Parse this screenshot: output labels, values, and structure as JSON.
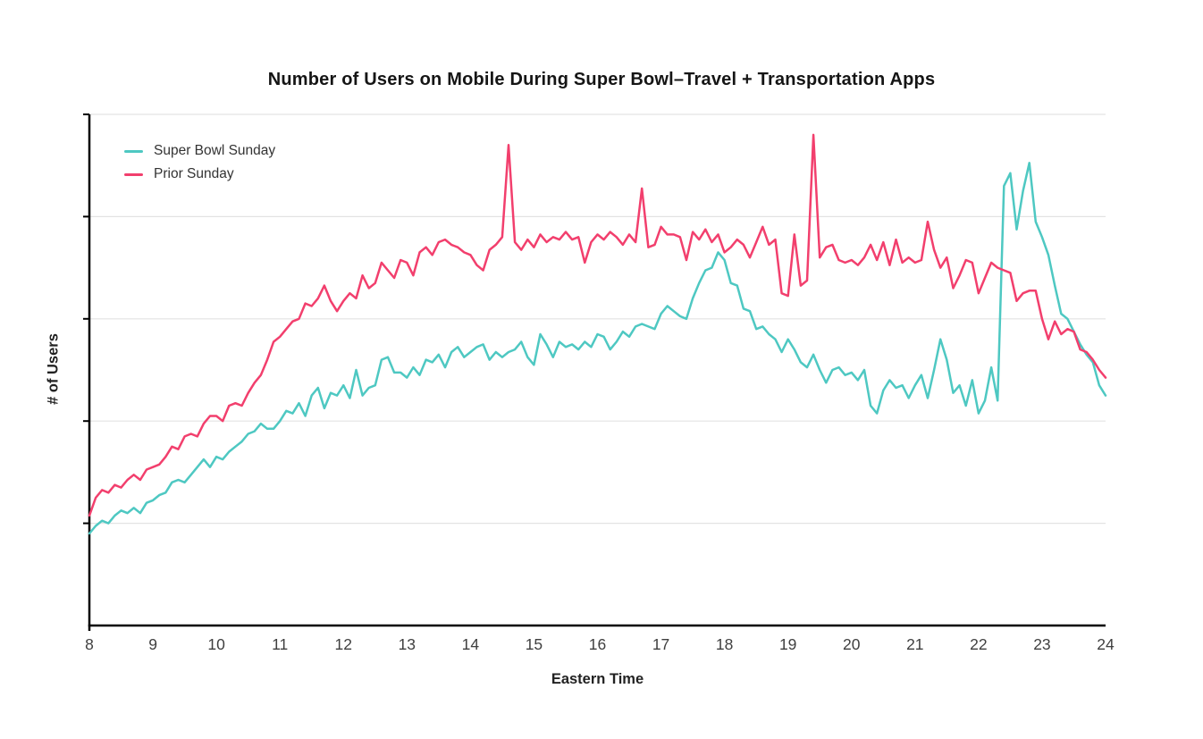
{
  "page": {
    "background": "#ffffff"
  },
  "chart": {
    "title": "Number of Users on Mobile During Super Bowl–Travel + Transportation Apps",
    "xlabel": "Eastern Time",
    "ylabel": "# of Users"
  },
  "chart_data": {
    "type": "line",
    "title": "Number of Users on Mobile During Super Bowl–Travel + Transportation Apps",
    "xlabel": "Eastern Time",
    "ylabel": "# of Users",
    "xlim": [
      8,
      24
    ],
    "ylim": [
      0,
      100
    ],
    "x_ticks": [
      8,
      9,
      10,
      11,
      12,
      13,
      14,
      15,
      16,
      17,
      18,
      19,
      20,
      21,
      22,
      23,
      24
    ],
    "y_gridlines": [
      20,
      40,
      60,
      80,
      100
    ],
    "y_tick_labels_visible": false,
    "grid_on": true,
    "grid_color": "#e3e3e3",
    "axis_color": "#000000",
    "tick_label_color": "#3f3f3f",
    "legend_position": "top-left",
    "x_start": 8,
    "x_step": 0.1,
    "y_units": "relative users (unlabeled axis)",
    "series": [
      {
        "name": "Super Bowl Sunday",
        "color": "#4ec8c2",
        "values": [
          18.0,
          19.5,
          20.5,
          20.0,
          21.5,
          22.5,
          22.0,
          23.0,
          22.0,
          24.0,
          24.5,
          25.5,
          26.0,
          28.0,
          28.5,
          28.0,
          29.5,
          31.0,
          32.5,
          31.0,
          33.0,
          32.5,
          34.0,
          35.0,
          36.0,
          37.5,
          38.0,
          39.5,
          38.5,
          38.5,
          40.0,
          42.0,
          41.5,
          43.5,
          41.0,
          45.0,
          46.5,
          42.5,
          45.5,
          45.0,
          47.0,
          44.5,
          50.0,
          45.0,
          46.5,
          47.0,
          52.0,
          52.5,
          49.5,
          49.5,
          48.5,
          50.5,
          49.0,
          52.0,
          51.5,
          53.0,
          50.5,
          53.5,
          54.5,
          52.5,
          53.5,
          54.5,
          55.0,
          52.0,
          53.5,
          52.5,
          53.5,
          54.0,
          55.5,
          52.5,
          51.0,
          57.0,
          55.0,
          52.5,
          55.5,
          54.5,
          55.0,
          54.0,
          55.5,
          54.5,
          57.0,
          56.5,
          54.0,
          55.5,
          57.5,
          56.5,
          58.5,
          59.0,
          58.5,
          58.0,
          61.0,
          62.5,
          61.5,
          60.5,
          60.0,
          64.0,
          67.0,
          69.5,
          70.0,
          73.0,
          71.5,
          67.0,
          66.5,
          62.0,
          61.5,
          58.0,
          58.5,
          57.0,
          56.0,
          53.5,
          56.0,
          54.0,
          51.5,
          50.5,
          53.0,
          50.0,
          47.5,
          50.0,
          50.5,
          49.0,
          49.5,
          48.0,
          50.0,
          43.0,
          41.5,
          46.0,
          48.0,
          46.5,
          47.0,
          44.5,
          47.0,
          49.0,
          44.5,
          50.0,
          56.0,
          52.0,
          45.5,
          47.0,
          43.0,
          48.0,
          41.5,
          44.0,
          50.5,
          44.0,
          86.0,
          88.5,
          77.5,
          85.0,
          90.5,
          79.0,
          76.0,
          72.5,
          66.5,
          61.0,
          60.0,
          57.5,
          55.0,
          53.0,
          51.5,
          47.0,
          45.0
        ]
      },
      {
        "name": "Prior Sunday",
        "color": "#f23f6d",
        "values": [
          21.5,
          25.0,
          26.5,
          26.0,
          27.5,
          27.0,
          28.5,
          29.5,
          28.5,
          30.5,
          31.0,
          31.5,
          33.0,
          35.0,
          34.5,
          37.0,
          37.5,
          37.0,
          39.5,
          41.0,
          41.0,
          40.0,
          43.0,
          43.5,
          43.0,
          45.5,
          47.5,
          49.0,
          52.0,
          55.5,
          56.5,
          58.0,
          59.5,
          60.0,
          63.0,
          62.5,
          64.0,
          66.5,
          63.5,
          61.5,
          63.5,
          65.0,
          64.0,
          68.5,
          66.0,
          67.0,
          71.0,
          69.5,
          68.0,
          71.5,
          71.0,
          68.5,
          73.0,
          74.0,
          72.5,
          75.0,
          75.5,
          74.5,
          74.0,
          73.0,
          72.5,
          70.5,
          69.5,
          73.5,
          74.5,
          76.0,
          94.0,
          75.0,
          73.5,
          75.5,
          74.0,
          76.5,
          75.0,
          76.0,
          75.5,
          77.0,
          75.5,
          76.0,
          71.0,
          75.0,
          76.5,
          75.5,
          77.0,
          76.0,
          74.5,
          76.5,
          75.0,
          85.5,
          74.0,
          74.5,
          78.0,
          76.5,
          76.5,
          76.0,
          71.5,
          77.0,
          75.5,
          77.5,
          75.0,
          76.5,
          73.0,
          74.0,
          75.5,
          74.5,
          72.0,
          75.0,
          78.0,
          74.5,
          75.5,
          65.0,
          64.5,
          76.5,
          66.5,
          67.5,
          96.0,
          72.0,
          74.0,
          74.5,
          71.5,
          71.0,
          71.5,
          70.5,
          72.0,
          74.5,
          71.5,
          75.0,
          70.5,
          75.5,
          71.0,
          72.0,
          71.0,
          71.5,
          79.0,
          73.5,
          70.0,
          72.0,
          66.0,
          68.5,
          71.5,
          71.0,
          65.0,
          68.0,
          71.0,
          70.0,
          69.5,
          69.0,
          63.5,
          65.0,
          65.5,
          65.5,
          60.0,
          56.0,
          59.5,
          57.0,
          58.0,
          57.5,
          54.0,
          53.5,
          52.0,
          50.0,
          48.5
        ]
      }
    ]
  }
}
